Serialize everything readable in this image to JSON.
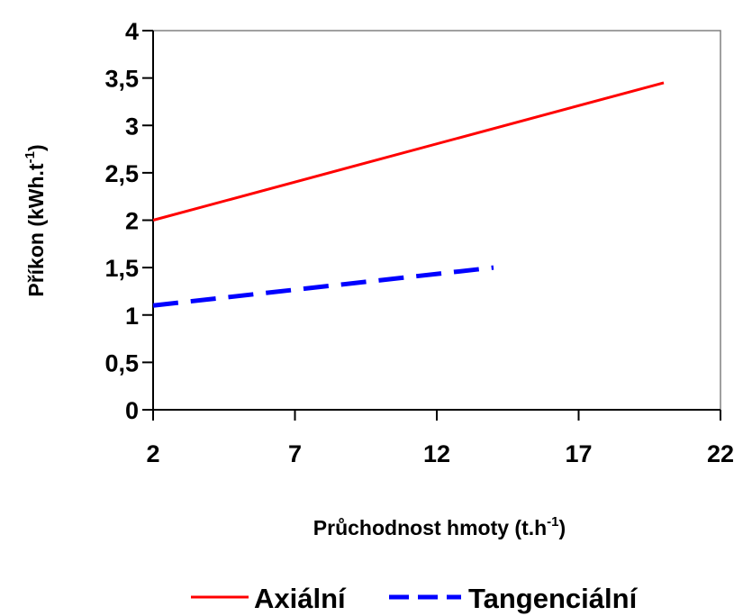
{
  "chart_data": {
    "type": "line",
    "title": "",
    "xlabel": {
      "main": "Průchodnost hmoty (t.h",
      "sup": "-1",
      "tail": ")"
    },
    "ylabel": {
      "main": "Příkon (kWh.t",
      "sup": "-1",
      "tail": ")"
    },
    "xlim": [
      2,
      22
    ],
    "ylim": [
      0,
      4
    ],
    "x_ticks": [
      2,
      7,
      12,
      17,
      22
    ],
    "x_tick_labels": [
      "2",
      "7",
      "12",
      "17",
      "22"
    ],
    "y_ticks": [
      0,
      0.5,
      1,
      1.5,
      2,
      2.5,
      3,
      3.5,
      4
    ],
    "y_tick_labels": [
      "0",
      "0,5",
      "1",
      "1,5",
      "2",
      "2,5",
      "3",
      "3,5",
      "4"
    ],
    "grid": false,
    "legend_position": "bottom",
    "series": [
      {
        "name": "Axiální",
        "color": "#ff0000",
        "dash": "solid",
        "x": [
          2,
          20
        ],
        "y": [
          2.0,
          3.45
        ]
      },
      {
        "name": "Tangenciální",
        "color": "#0000ff",
        "dash": "dashed",
        "x": [
          2,
          14
        ],
        "y": [
          1.1,
          1.5
        ]
      }
    ]
  }
}
